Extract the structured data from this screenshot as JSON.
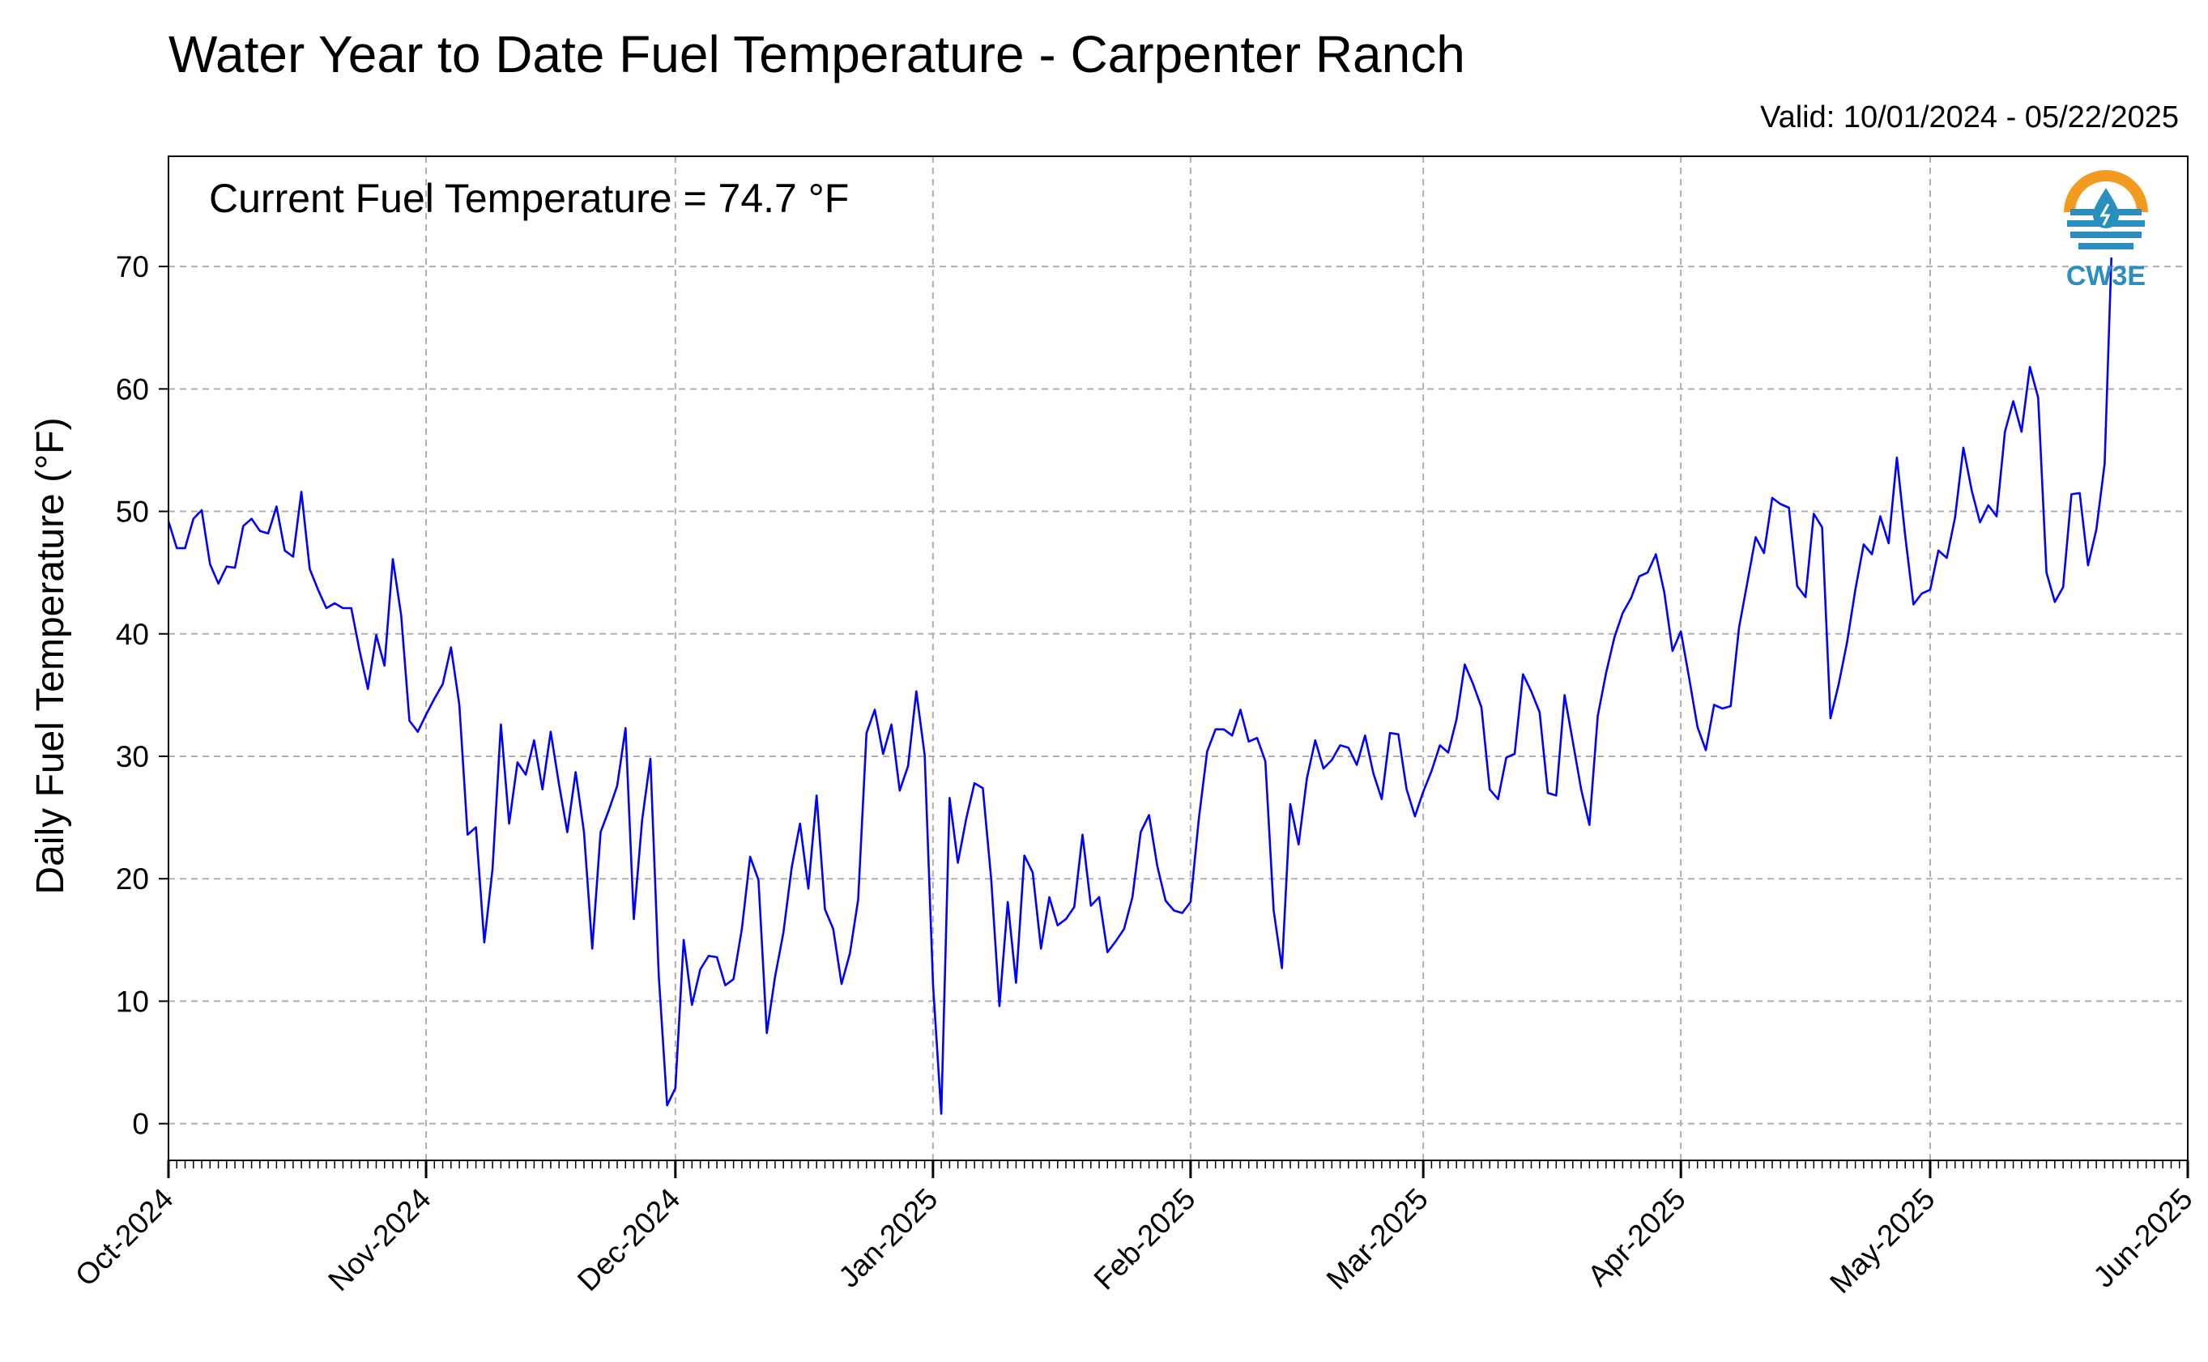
{
  "header": {
    "title": "Water Year to Date Fuel Temperature - Carpenter Ranch",
    "valid": "Valid: 10/01/2024 - 05/22/2025"
  },
  "annotation": "Current Fuel Temperature = 74.7 °F",
  "logo": {
    "text": "CW3E",
    "icon": "cw3e-water-drop-logo-icon",
    "ring_color": "#f39a21",
    "wave_color": "#2a8fbf"
  },
  "colors": {
    "line": "#0000ff",
    "grid": "#b0b0b0"
  },
  "chart_data": {
    "type": "line",
    "title": "Water Year to Date Fuel Temperature - Carpenter Ranch",
    "ylabel": "Daily Fuel Temperature (°F)",
    "xlabel": "",
    "x_start": "2024-10-01",
    "x_end": "2025-05-22",
    "xlim": [
      "2024-10-01",
      "2025-06-01"
    ],
    "ylim": [
      -3,
      79
    ],
    "yticks": [
      0,
      10,
      20,
      30,
      40,
      50,
      60,
      70
    ],
    "xtick_labels": [
      "Oct-2024",
      "Nov-2024",
      "Dec-2024",
      "Jan-2025",
      "Feb-2025",
      "Mar-2025",
      "Apr-2025",
      "May-2025",
      "Jun-2025"
    ],
    "grid": true,
    "series": [
      {
        "values": [
          49.2,
          47.0,
          47.0,
          49.4,
          50.1,
          45.7,
          44.1,
          45.5,
          45.4,
          48.8,
          49.4,
          48.4,
          48.2,
          50.4,
          46.8,
          46.3,
          51.6,
          45.3,
          43.6,
          42.1,
          42.5,
          42.1,
          42.1,
          38.6,
          35.5,
          39.9,
          37.4,
          46.1,
          41.5,
          32.9,
          32.0,
          33.4,
          34.7,
          35.9,
          38.9,
          34.2,
          23.6,
          24.2,
          14.8,
          20.8,
          32.6,
          24.5,
          29.5,
          28.5,
          31.3,
          27.3,
          32.0,
          27.7,
          23.8,
          28.7,
          23.8,
          14.3,
          23.8,
          25.6,
          27.6,
          32.3,
          16.7,
          24.8,
          29.8,
          12.1,
          1.5,
          2.9,
          15.0,
          9.7,
          12.6,
          13.7,
          13.6,
          11.3,
          11.8,
          15.9,
          21.8,
          19.9,
          7.4,
          12.0,
          15.6,
          20.9,
          24.5,
          19.2,
          26.8,
          17.5,
          15.9,
          11.4,
          13.9,
          18.3,
          31.9,
          33.8,
          30.2,
          32.6,
          27.2,
          29.2,
          35.3,
          30.1,
          11.4,
          0.8,
          26.6,
          21.3,
          24.9,
          27.8,
          27.4,
          20.0,
          9.6,
          18.1,
          11.5,
          21.9,
          20.5,
          14.3,
          18.5,
          16.2,
          16.7,
          17.7,
          23.6,
          17.8,
          18.5,
          14.0,
          14.9,
          15.9,
          18.5,
          23.8,
          25.2,
          21.0,
          18.2,
          17.4,
          17.2,
          18.1,
          24.9,
          30.4,
          32.2,
          32.2,
          31.7,
          33.8,
          31.2,
          31.5,
          29.6,
          17.4,
          12.7,
          26.1,
          22.8,
          28.2,
          31.3,
          29.0,
          29.7,
          30.9,
          30.7,
          29.3,
          31.7,
          28.6,
          26.5,
          31.9,
          31.8,
          27.3,
          25.1,
          27.1,
          28.8,
          30.9,
          30.3,
          33.0,
          37.5,
          35.9,
          34.0,
          27.3,
          26.5,
          29.9,
          30.2,
          36.7,
          35.3,
          33.6,
          27.0,
          26.8,
          35.0,
          31.2,
          27.3,
          24.4,
          33.3,
          36.8,
          39.7,
          41.7,
          42.9,
          44.7,
          45.0,
          46.5,
          43.4,
          38.6,
          40.2,
          36.4,
          32.4,
          30.5,
          34.2,
          33.9,
          34.1,
          40.5,
          44.2,
          47.9,
          46.6,
          51.1,
          50.6,
          50.3,
          43.9,
          43.0,
          49.8,
          48.7,
          33.1,
          35.9,
          39.3,
          43.6,
          47.3,
          46.5,
          49.6,
          47.4,
          54.4,
          48.0,
          42.4,
          43.3,
          43.6,
          46.8,
          46.2,
          49.5,
          55.2,
          51.7,
          49.1,
          50.5,
          49.6,
          56.5,
          59.0,
          56.5,
          61.8,
          59.3,
          45.0,
          42.6,
          43.8,
          51.4,
          51.5,
          45.6,
          48.5,
          53.9,
          74.7
        ]
      }
    ]
  }
}
